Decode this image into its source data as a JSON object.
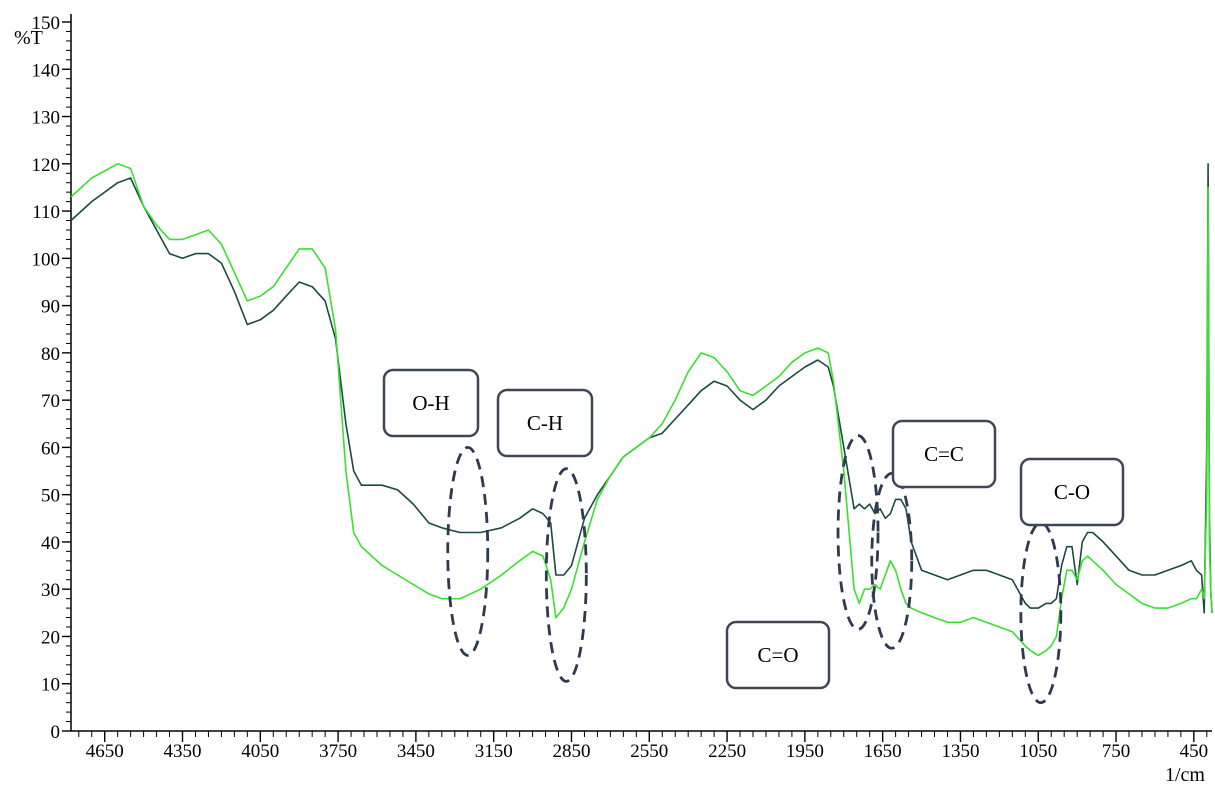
{
  "chart_data": {
    "type": "line",
    "title": "",
    "xlabel": "1/cm",
    "ylabel": "%T",
    "xlim": [
      4780,
      380
    ],
    "ylim": [
      0,
      150
    ],
    "x_reversed": true,
    "x_ticks": [
      4650,
      4350,
      4050,
      3750,
      3450,
      3150,
      2850,
      2550,
      2250,
      1950,
      1650,
      1350,
      1050,
      750,
      450
    ],
    "y_ticks": [
      0,
      10,
      20,
      30,
      40,
      50,
      60,
      70,
      80,
      90,
      100,
      110,
      120,
      130,
      140,
      150
    ],
    "grid": false,
    "legend": "none",
    "series": [
      {
        "color": "#1d4a40",
        "x": [
          4780,
          4700,
          4600,
          4550,
          4500,
          4450,
          4400,
          4350,
          4300,
          4250,
          4200,
          4150,
          4100,
          4050,
          4000,
          3950,
          3900,
          3850,
          3800,
          3760,
          3720,
          3690,
          3660,
          3620,
          3580,
          3520,
          3460,
          3400,
          3350,
          3280,
          3200,
          3120,
          3050,
          3000,
          2960,
          2930,
          2910,
          2880,
          2850,
          2800,
          2750,
          2700,
          2650,
          2600,
          2550,
          2500,
          2450,
          2400,
          2350,
          2300,
          2250,
          2200,
          2150,
          2100,
          2050,
          2000,
          1950,
          1900,
          1860,
          1840,
          1800,
          1760,
          1740,
          1720,
          1700,
          1680,
          1660,
          1640,
          1620,
          1600,
          1580,
          1560,
          1540,
          1500,
          1450,
          1400,
          1350,
          1300,
          1250,
          1200,
          1150,
          1100,
          1080,
          1050,
          1020,
          1000,
          980,
          960,
          940,
          920,
          900,
          880,
          860,
          840,
          800,
          750,
          700,
          650,
          600,
          550,
          500,
          460,
          440,
          420,
          410,
          400,
          395,
          390,
          385,
          380
        ],
        "y": [
          108,
          112,
          116,
          117,
          111,
          106,
          101,
          100,
          101,
          101,
          99,
          93,
          86,
          87,
          89,
          92,
          95,
          94,
          91,
          83,
          65,
          55,
          52,
          52,
          52,
          51,
          48,
          44,
          43,
          42,
          42,
          43,
          45,
          47,
          46,
          44,
          33,
          33,
          35,
          45,
          50,
          54,
          58,
          60,
          62,
          63,
          66,
          69,
          72,
          74,
          73,
          70,
          68,
          70,
          73,
          75,
          77,
          78.5,
          77,
          73,
          60,
          47,
          48,
          47,
          48,
          46,
          47,
          45,
          46,
          49,
          49,
          47,
          40,
          34,
          33,
          32,
          33,
          34,
          34,
          33,
          32,
          27,
          26,
          26,
          27,
          27,
          28,
          35,
          39,
          39,
          31,
          40,
          42,
          42,
          40,
          37,
          34,
          33,
          33,
          34,
          35,
          36,
          34,
          33,
          25,
          60,
          120,
          45,
          30,
          25
        ]
      },
      {
        "color": "#39e02f",
        "x": [
          4780,
          4700,
          4600,
          4550,
          4500,
          4450,
          4400,
          4350,
          4300,
          4250,
          4200,
          4150,
          4100,
          4050,
          4000,
          3950,
          3900,
          3850,
          3800,
          3760,
          3720,
          3690,
          3660,
          3620,
          3580,
          3520,
          3460,
          3400,
          3350,
          3280,
          3200,
          3120,
          3050,
          3000,
          2960,
          2930,
          2910,
          2880,
          2850,
          2800,
          2750,
          2700,
          2650,
          2600,
          2550,
          2500,
          2450,
          2400,
          2350,
          2300,
          2250,
          2200,
          2150,
          2100,
          2050,
          2000,
          1950,
          1900,
          1860,
          1840,
          1800,
          1760,
          1740,
          1720,
          1700,
          1680,
          1660,
          1640,
          1620,
          1600,
          1580,
          1560,
          1540,
          1500,
          1450,
          1400,
          1350,
          1300,
          1250,
          1200,
          1150,
          1100,
          1080,
          1050,
          1020,
          1000,
          980,
          960,
          940,
          920,
          900,
          880,
          860,
          840,
          800,
          750,
          700,
          650,
          600,
          550,
          500,
          460,
          440,
          420,
          410,
          400,
          395,
          390,
          385,
          380
        ],
        "y": [
          113,
          117,
          120,
          119,
          111,
          107,
          104,
          104,
          105,
          106,
          103,
          97,
          91,
          92,
          94,
          98,
          102,
          102,
          98,
          85,
          55,
          42,
          39,
          37,
          35,
          33,
          31,
          29,
          28,
          28,
          30,
          33,
          36,
          38,
          37,
          32,
          24,
          26,
          30,
          40,
          49,
          54,
          58,
          60,
          62,
          65,
          70,
          76,
          80,
          79,
          76,
          72,
          71,
          73,
          75,
          78,
          80,
          81,
          80,
          74,
          55,
          30,
          27,
          30,
          30,
          31,
          30,
          33,
          36,
          34,
          30,
          27,
          26,
          25,
          24,
          23,
          23,
          24,
          23,
          22,
          21,
          18,
          17,
          16,
          17,
          18,
          20,
          28,
          34,
          34,
          32,
          36,
          37,
          36,
          34,
          31,
          29,
          27,
          26,
          26,
          27,
          28,
          28,
          30,
          28,
          50,
          115,
          40,
          30,
          25
        ]
      }
    ],
    "annotations": [
      {
        "label": "O-H",
        "x": 3250,
        "y_range": [
          16,
          60
        ]
      },
      {
        "label": "C-H",
        "x": 2870,
        "y_range": [
          10.5,
          55.5
        ]
      },
      {
        "label": "C=O",
        "x": 1745,
        "y_range": [
          21.5,
          62.5
        ]
      },
      {
        "label": "C=C",
        "x": 1615,
        "y_range": [
          17.5,
          54.5
        ]
      },
      {
        "label": "C-O",
        "x": 1040,
        "y_range": [
          6,
          44
        ]
      }
    ]
  }
}
